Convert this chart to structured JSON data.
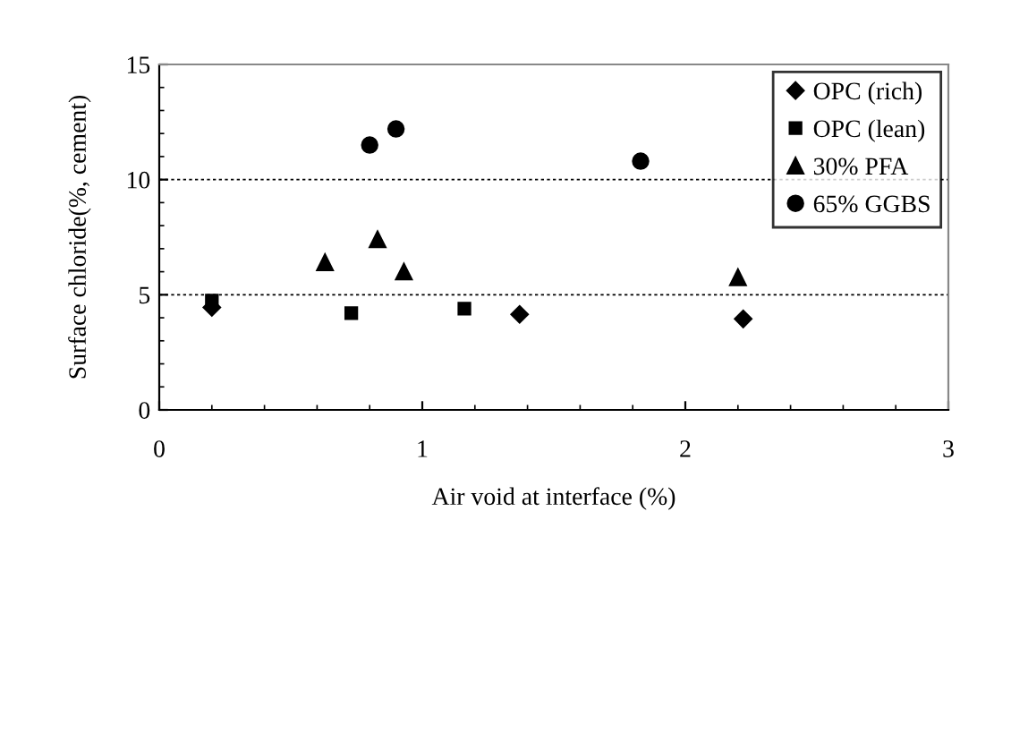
{
  "chart_data": {
    "type": "scatter",
    "xlabel": "Air void at interface (%)",
    "ylabel": "Surface chloride(%, cement)",
    "xlim": [
      0,
      3
    ],
    "xticks": [
      0,
      1,
      2,
      3
    ],
    "ylim": [
      0,
      15
    ],
    "yticks": [
      0,
      5,
      10,
      15
    ],
    "grid": "y",
    "legend": "top right",
    "series": [
      {
        "name": "OPC (rich)",
        "color": "#000000",
        "marker": "diamond",
        "x": [
          0.2,
          1.37,
          2.22
        ],
        "values": [
          4.45,
          4.15,
          3.95
        ]
      },
      {
        "name": "OPC (lean)",
        "color": "#000000",
        "marker": "square",
        "x": [
          0.2,
          0.73,
          1.16
        ],
        "values": [
          4.75,
          4.2,
          4.4
        ]
      },
      {
        "name": "30% PFA",
        "color": "#000000",
        "marker": "triangle",
        "x": [
          0.63,
          0.83,
          0.93,
          2.2
        ],
        "values": [
          6.4,
          7.4,
          6.0,
          5.75
        ]
      },
      {
        "name": "65% GGBS",
        "color": "#000000",
        "marker": "circle",
        "x": [
          0.8,
          0.9,
          1.83
        ],
        "values": [
          11.5,
          12.2,
          10.8
        ]
      }
    ]
  }
}
